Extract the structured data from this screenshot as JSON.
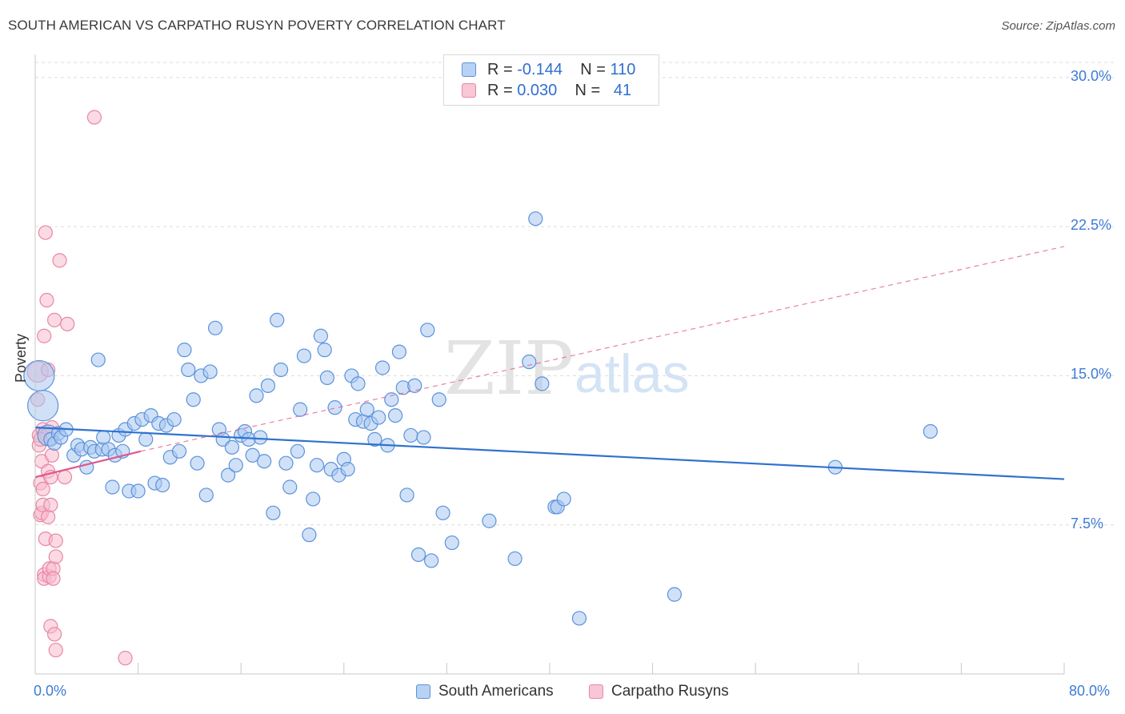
{
  "title": "SOUTH AMERICAN VS CARPATHO RUSYN POVERTY CORRELATION CHART",
  "source": "Source: ZipAtlas.com",
  "watermark": {
    "zip": "ZIP",
    "atlas": "atlas"
  },
  "colors": {
    "blue_fill": "#a9c8f0",
    "blue_stroke": "#5b92dc",
    "blue_line": "#2f72cf",
    "pink_fill": "#f7bccd",
    "pink_stroke": "#e887a6",
    "pink_line": "#e0578a",
    "tick_text": "#3d7bd6",
    "grid": "#dcdcdc"
  },
  "legend": {
    "rows": [
      {
        "r_label": "R =",
        "r_value": "-0.144",
        "n_label": "N =",
        "n_value": "110"
      },
      {
        "r_label": "R =",
        "r_value": "0.030",
        "n_label": "N =",
        "n_value": "41"
      }
    ]
  },
  "bottom_legend": [
    "South Americans",
    "Carpatho Rusyns"
  ],
  "chart_data": {
    "type": "scatter",
    "title": "SOUTH AMERICAN VS CARPATHO RUSYN POVERTY CORRELATION CHART",
    "xlabel": "",
    "ylabel": "Poverty",
    "xlim": [
      0,
      80
    ],
    "ylim": [
      0,
      31
    ],
    "x_tick_labels": [
      "0.0%",
      "80.0%"
    ],
    "y_ticks": [
      7.5,
      15,
      22.5,
      30
    ],
    "y_tick_labels": [
      "7.5%",
      "15.0%",
      "22.5%",
      "30.0%"
    ],
    "grid": true,
    "legend_position": "top-center",
    "series": [
      {
        "name": "South Americans",
        "r": -0.144,
        "n": 110,
        "trend": {
          "x": [
            0,
            80
          ],
          "y": [
            12.4,
            9.8
          ],
          "style": "solid"
        },
        "points": [
          [
            0.3,
            15.0,
            "L"
          ],
          [
            0.6,
            13.5,
            "L"
          ],
          [
            1.0,
            12.0,
            "M"
          ],
          [
            1.2,
            11.8
          ],
          [
            1.5,
            11.6
          ],
          [
            1.8,
            12.1
          ],
          [
            2.0,
            11.9
          ],
          [
            2.4,
            12.3
          ],
          [
            3.0,
            11.0
          ],
          [
            3.3,
            11.5
          ],
          [
            3.6,
            11.3
          ],
          [
            4.0,
            10.4
          ],
          [
            4.3,
            11.4
          ],
          [
            4.6,
            11.2
          ],
          [
            4.9,
            15.8
          ],
          [
            5.2,
            11.3
          ],
          [
            5.3,
            11.9
          ],
          [
            5.7,
            11.3
          ],
          [
            6.0,
            9.4
          ],
          [
            6.2,
            11.0
          ],
          [
            6.5,
            12.0
          ],
          [
            6.8,
            11.2
          ],
          [
            7.0,
            12.3
          ],
          [
            7.3,
            9.2
          ],
          [
            7.7,
            12.6
          ],
          [
            8.0,
            9.2
          ],
          [
            8.3,
            12.8
          ],
          [
            8.6,
            11.8
          ],
          [
            9.0,
            13.0
          ],
          [
            9.3,
            9.6
          ],
          [
            9.6,
            12.6
          ],
          [
            9.9,
            9.5
          ],
          [
            10.2,
            12.5
          ],
          [
            10.5,
            10.9
          ],
          [
            10.8,
            12.8
          ],
          [
            11.2,
            11.2
          ],
          [
            11.6,
            16.3
          ],
          [
            11.9,
            15.3
          ],
          [
            12.3,
            13.8
          ],
          [
            12.6,
            10.6
          ],
          [
            12.9,
            15.0
          ],
          [
            13.3,
            9.0
          ],
          [
            13.6,
            15.2
          ],
          [
            14.0,
            17.4
          ],
          [
            14.3,
            12.3
          ],
          [
            14.6,
            11.8
          ],
          [
            15.0,
            10.0
          ],
          [
            15.3,
            11.4
          ],
          [
            15.6,
            10.5
          ],
          [
            16.0,
            12.0
          ],
          [
            16.3,
            12.2
          ],
          [
            16.6,
            11.8
          ],
          [
            16.9,
            11.0
          ],
          [
            17.2,
            14.0
          ],
          [
            17.5,
            11.9
          ],
          [
            17.8,
            10.7
          ],
          [
            18.1,
            14.5
          ],
          [
            18.5,
            8.1
          ],
          [
            18.8,
            17.8
          ],
          [
            19.1,
            15.3
          ],
          [
            19.5,
            10.6
          ],
          [
            19.8,
            9.4
          ],
          [
            20.4,
            11.2
          ],
          [
            20.6,
            13.3
          ],
          [
            20.9,
            16.0
          ],
          [
            21.3,
            7.0
          ],
          [
            21.6,
            8.8
          ],
          [
            21.9,
            10.5
          ],
          [
            22.2,
            17.0
          ],
          [
            22.5,
            16.3
          ],
          [
            22.7,
            14.9
          ],
          [
            23.0,
            10.3
          ],
          [
            23.3,
            13.4
          ],
          [
            23.6,
            10.0
          ],
          [
            24.0,
            10.8
          ],
          [
            24.3,
            10.3
          ],
          [
            24.6,
            15.0
          ],
          [
            24.9,
            12.8
          ],
          [
            25.1,
            14.6
          ],
          [
            25.5,
            12.7
          ],
          [
            25.8,
            13.3
          ],
          [
            26.1,
            12.6
          ],
          [
            26.4,
            11.8
          ],
          [
            26.7,
            12.9
          ],
          [
            27.0,
            15.4
          ],
          [
            27.4,
            11.5
          ],
          [
            27.7,
            13.8
          ],
          [
            28.0,
            13.0
          ],
          [
            28.3,
            16.2
          ],
          [
            28.6,
            14.4
          ],
          [
            28.9,
            9.0
          ],
          [
            29.2,
            12.0
          ],
          [
            29.5,
            14.5
          ],
          [
            29.8,
            6.0
          ],
          [
            30.2,
            11.9
          ],
          [
            30.5,
            17.3
          ],
          [
            30.8,
            5.7
          ],
          [
            31.4,
            13.8
          ],
          [
            31.7,
            8.1
          ],
          [
            32.4,
            6.6
          ],
          [
            35.3,
            7.7
          ],
          [
            37.3,
            5.8
          ],
          [
            38.4,
            15.7
          ],
          [
            38.9,
            22.9
          ],
          [
            39.4,
            14.6
          ],
          [
            40.4,
            8.4
          ],
          [
            40.6,
            8.4
          ],
          [
            41.1,
            8.8
          ],
          [
            42.3,
            2.8
          ],
          [
            49.7,
            4.0
          ],
          [
            62.2,
            10.4
          ],
          [
            69.6,
            12.2
          ]
        ]
      },
      {
        "name": "Carpatho Rusyns",
        "r": 0.03,
        "n": 41,
        "trend": {
          "x": [
            0,
            8.2
          ],
          "y": [
            9.9,
            11.2
          ],
          "x_dashed_end": 80,
          "y_dashed_end": 21.5,
          "style": "solid-then-dashed"
        },
        "points": [
          [
            0.2,
            15.2,
            "M"
          ],
          [
            0.2,
            13.8
          ],
          [
            0.3,
            11.5
          ],
          [
            0.3,
            12.0
          ],
          [
            0.4,
            9.6
          ],
          [
            0.4,
            8.0
          ],
          [
            0.5,
            8.1
          ],
          [
            0.5,
            10.7
          ],
          [
            0.6,
            12.3
          ],
          [
            0.6,
            9.3
          ],
          [
            0.6,
            8.5
          ],
          [
            0.7,
            17.0
          ],
          [
            0.7,
            5.0
          ],
          [
            0.7,
            4.8
          ],
          [
            0.8,
            6.8
          ],
          [
            0.8,
            22.2
          ],
          [
            0.9,
            18.8
          ],
          [
            0.9,
            12.0
          ],
          [
            1.0,
            10.2
          ],
          [
            1.0,
            15.3
          ],
          [
            1.0,
            7.9
          ],
          [
            1.1,
            4.9
          ],
          [
            1.1,
            5.3
          ],
          [
            1.2,
            2.4
          ],
          [
            1.2,
            8.5
          ],
          [
            1.2,
            9.9
          ],
          [
            1.3,
            12.4
          ],
          [
            1.3,
            11.0
          ],
          [
            1.4,
            5.3
          ],
          [
            1.4,
            4.8
          ],
          [
            1.5,
            17.8
          ],
          [
            1.5,
            2.0
          ],
          [
            1.6,
            5.9
          ],
          [
            1.6,
            6.7
          ],
          [
            1.6,
            1.2
          ],
          [
            1.9,
            20.8
          ],
          [
            2.3,
            9.9
          ],
          [
            2.5,
            17.6
          ],
          [
            4.6,
            28.0
          ],
          [
            7.0,
            0.8
          ],
          [
            0.4,
            11.8
          ]
        ]
      }
    ]
  }
}
